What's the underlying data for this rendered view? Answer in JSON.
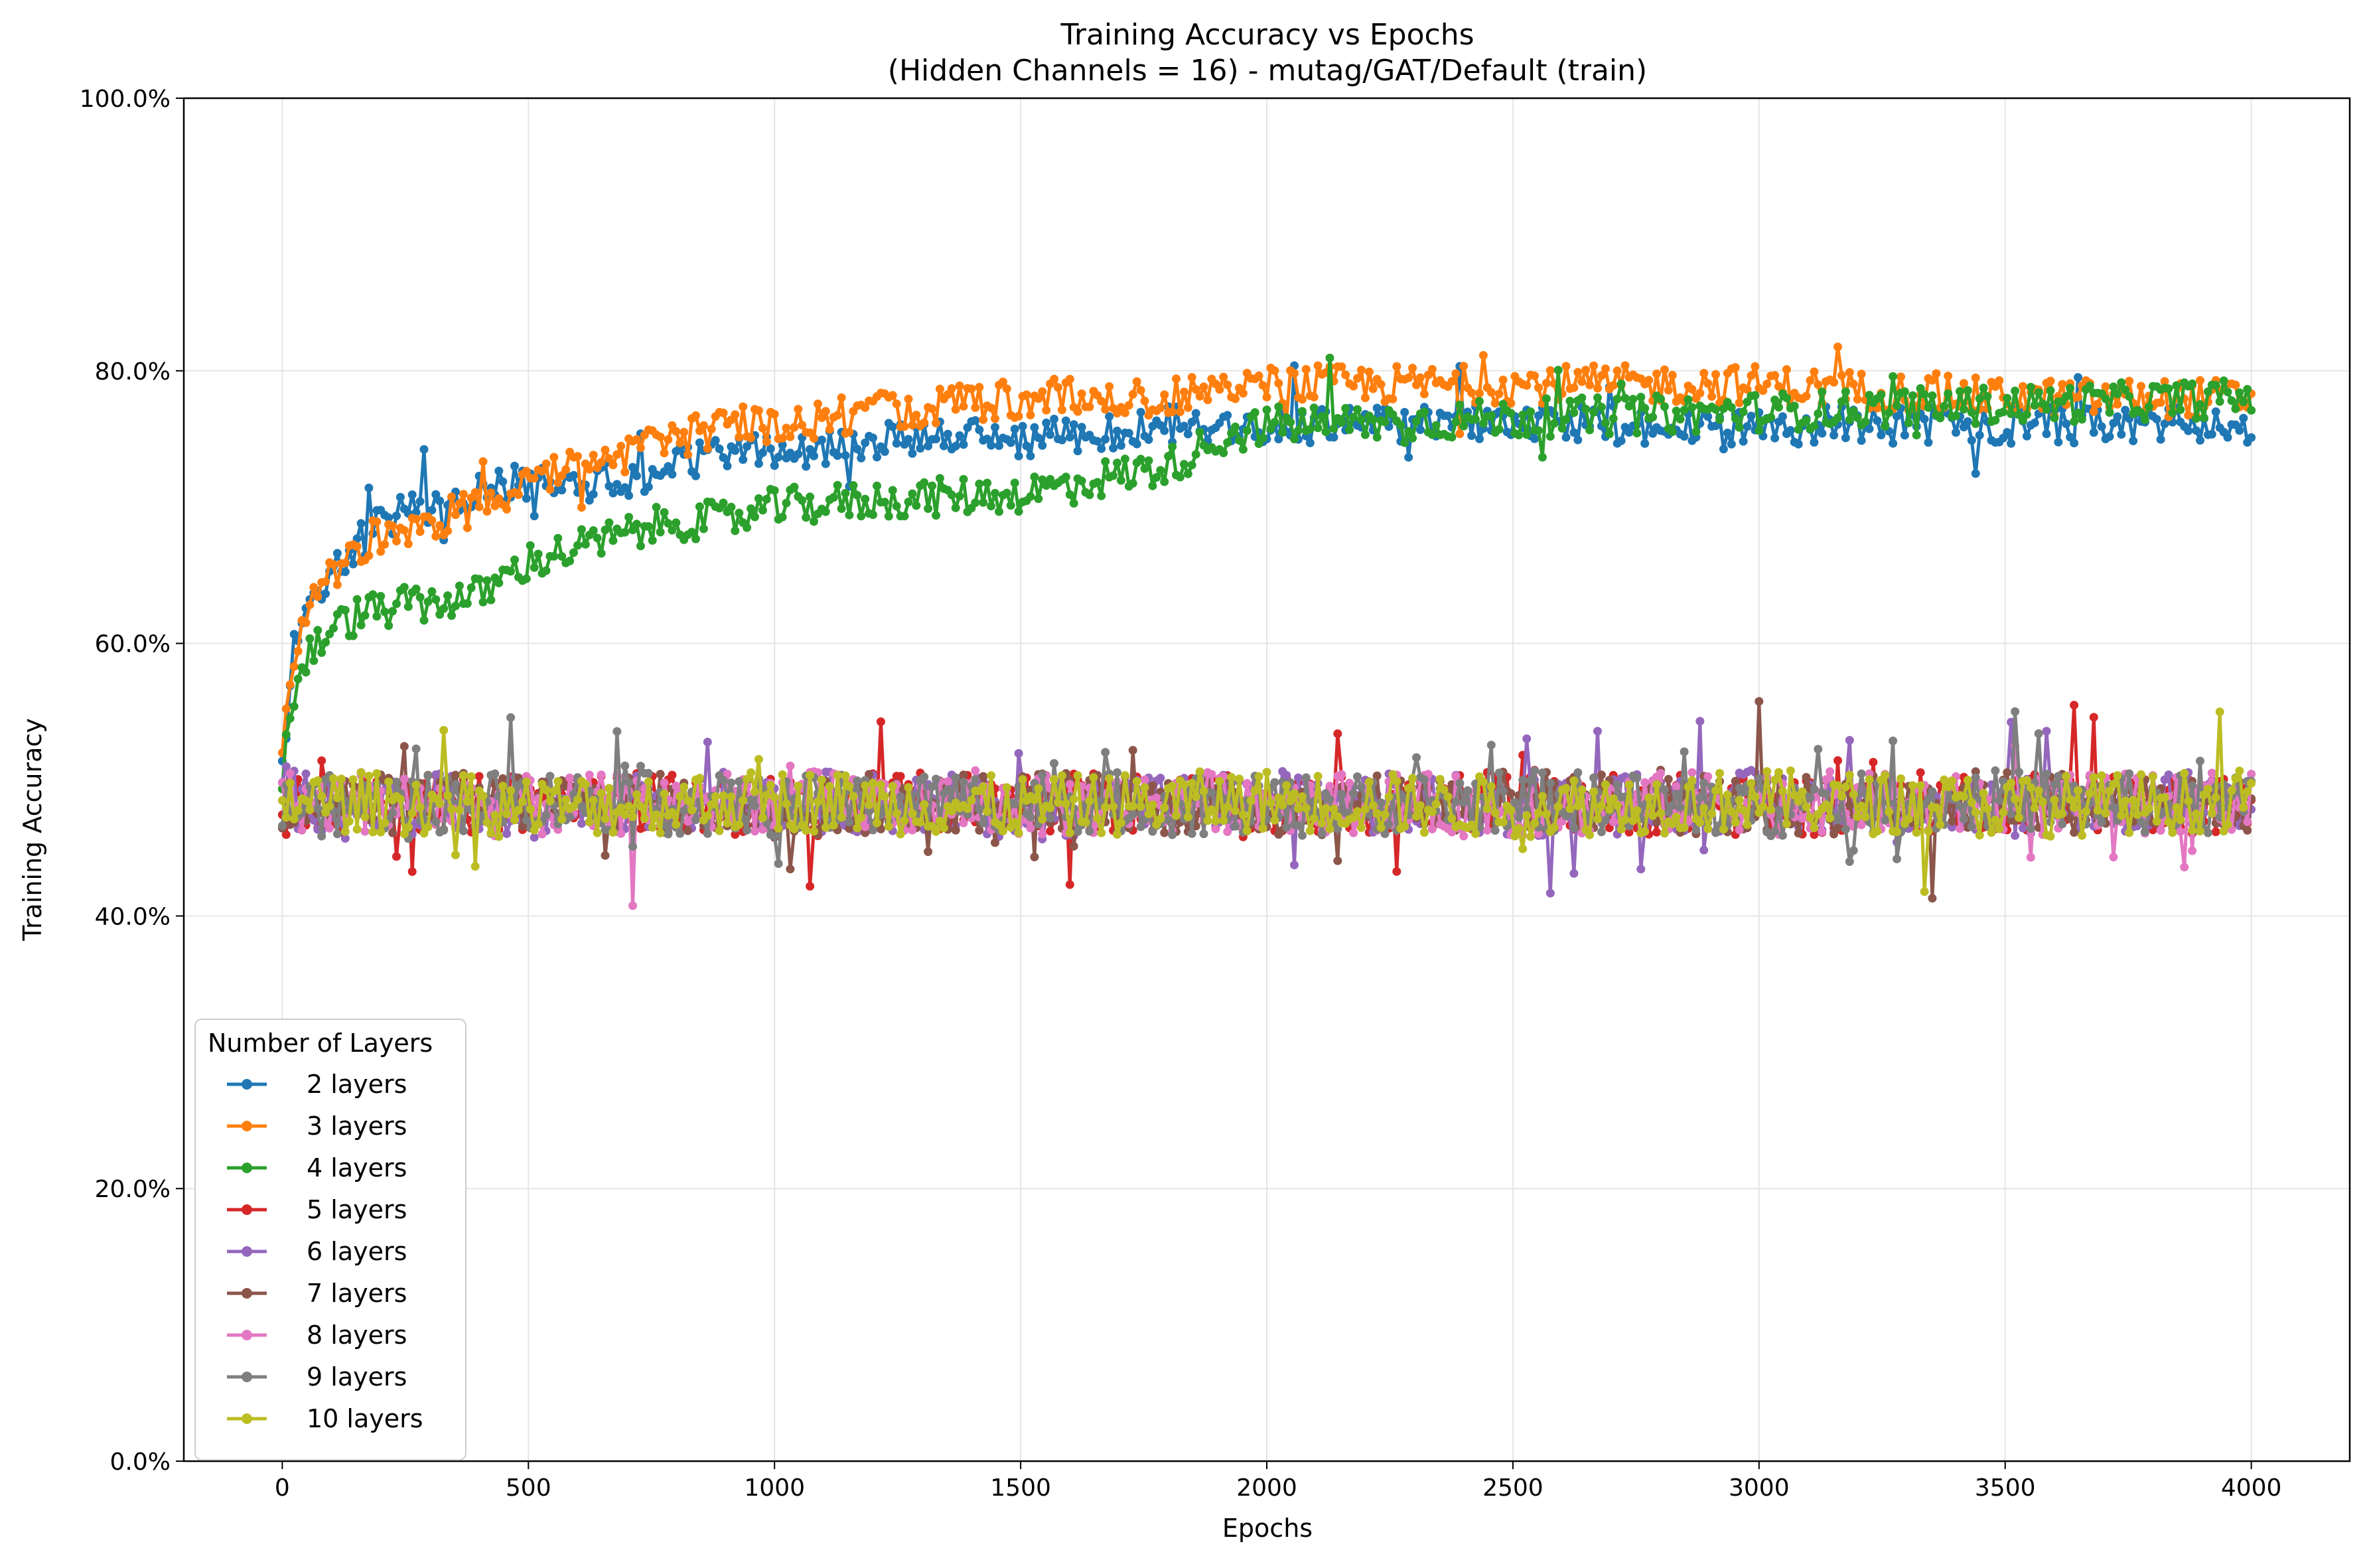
{
  "chart_data": {
    "type": "line",
    "title": "Training Accuracy vs Epochs",
    "subtitle": "(Hidden Channels = 16) - mutag/GAT/Default (train)",
    "xlabel": "Epochs",
    "ylabel": "Training Accuracy",
    "xlim": [
      -200,
      4200
    ],
    "ylim": [
      0,
      100
    ],
    "x_ticks": [
      0,
      500,
      1000,
      1500,
      2000,
      2500,
      3000,
      3500,
      4000
    ],
    "x_tick_labels": [
      "0",
      "500",
      "1000",
      "1500",
      "2000",
      "2500",
      "3000",
      "3500",
      "4000"
    ],
    "y_ticks": [
      0,
      20,
      40,
      60,
      80,
      100
    ],
    "y_tick_labels": [
      "0.0%",
      "20.0%",
      "40.0%",
      "60.0%",
      "80.0%",
      "100.0%"
    ],
    "grid": true,
    "legend_title": "Number of Layers",
    "legend_position": "lower-left",
    "series": [
      {
        "name": "2 layers",
        "color": "#1f77b4",
        "points": [
          [
            0,
            50
          ],
          [
            20,
            60
          ],
          [
            50,
            63
          ],
          [
            100,
            65
          ],
          [
            150,
            67
          ],
          [
            200,
            69
          ],
          [
            300,
            70
          ],
          [
            400,
            71
          ],
          [
            500,
            72
          ],
          [
            600,
            72
          ],
          [
            700,
            72
          ],
          [
            800,
            73
          ],
          [
            900,
            74
          ],
          [
            1000,
            74
          ],
          [
            1200,
            75
          ],
          [
            1500,
            75
          ],
          [
            1800,
            76
          ],
          [
            2000,
            76
          ],
          [
            2500,
            76
          ],
          [
            3000,
            76
          ],
          [
            3500,
            76
          ],
          [
            4000,
            76
          ]
        ]
      },
      {
        "name": "3 layers",
        "color": "#ff7f0e",
        "points": [
          [
            0,
            52
          ],
          [
            20,
            58
          ],
          [
            50,
            63
          ],
          [
            100,
            65
          ],
          [
            150,
            67
          ],
          [
            200,
            68
          ],
          [
            300,
            69
          ],
          [
            400,
            70
          ],
          [
            500,
            72
          ],
          [
            600,
            73
          ],
          [
            700,
            74
          ],
          [
            800,
            75
          ],
          [
            900,
            76
          ],
          [
            1000,
            76
          ],
          [
            1200,
            77
          ],
          [
            1500,
            78
          ],
          [
            1800,
            78
          ],
          [
            2000,
            79
          ],
          [
            2500,
            79
          ],
          [
            3000,
            79
          ],
          [
            3500,
            78
          ],
          [
            4000,
            78
          ]
        ]
      },
      {
        "name": "4 layers",
        "color": "#2ca02c",
        "points": [
          [
            0,
            50
          ],
          [
            20,
            56
          ],
          [
            50,
            59
          ],
          [
            100,
            61
          ],
          [
            150,
            62
          ],
          [
            200,
            62.5
          ],
          [
            300,
            63
          ],
          [
            400,
            63.5
          ],
          [
            500,
            66
          ],
          [
            600,
            67
          ],
          [
            700,
            68
          ],
          [
            800,
            69
          ],
          [
            900,
            69
          ],
          [
            1000,
            70
          ],
          [
            1200,
            70.5
          ],
          [
            1500,
            71
          ],
          [
            1800,
            73
          ],
          [
            1900,
            75
          ],
          [
            2000,
            76
          ],
          [
            2500,
            76.5
          ],
          [
            3000,
            77
          ],
          [
            3500,
            77.5
          ],
          [
            4000,
            78
          ]
        ]
      },
      {
        "name": "5 layers",
        "color": "#d62728",
        "points": [
          [
            0,
            48
          ],
          [
            500,
            48.5
          ],
          [
            1000,
            48
          ],
          [
            1500,
            48.5
          ],
          [
            2000,
            48
          ],
          [
            2500,
            48.5
          ],
          [
            3000,
            48
          ],
          [
            3500,
            48.5
          ],
          [
            4000,
            48
          ]
        ]
      },
      {
        "name": "6 layers",
        "color": "#9467bd",
        "points": [
          [
            0,
            48.5
          ],
          [
            500,
            48
          ],
          [
            1000,
            48.5
          ],
          [
            1500,
            48
          ],
          [
            2000,
            48.5
          ],
          [
            2500,
            48
          ],
          [
            3000,
            48.5
          ],
          [
            3500,
            48
          ],
          [
            4000,
            48.5
          ]
        ]
      },
      {
        "name": "7 layers",
        "color": "#8c564b",
        "points": [
          [
            0,
            48
          ],
          [
            500,
            48.5
          ],
          [
            1000,
            48
          ],
          [
            1500,
            48.5
          ],
          [
            2000,
            48
          ],
          [
            2500,
            48.5
          ],
          [
            3000,
            48
          ],
          [
            3500,
            48.5
          ],
          [
            4000,
            48
          ]
        ]
      },
      {
        "name": "8 layers",
        "color": "#e377c2",
        "points": [
          [
            0,
            48.5
          ],
          [
            500,
            48
          ],
          [
            1000,
            48.5
          ],
          [
            1500,
            48
          ],
          [
            2000,
            48.5
          ],
          [
            2500,
            48
          ],
          [
            3000,
            48.5
          ],
          [
            3500,
            48
          ],
          [
            4000,
            48.5
          ]
        ]
      },
      {
        "name": "9 layers",
        "color": "#7f7f7f",
        "points": [
          [
            0,
            48
          ],
          [
            500,
            48.5
          ],
          [
            1000,
            48
          ],
          [
            1500,
            48.5
          ],
          [
            2000,
            48
          ],
          [
            2500,
            48.5
          ],
          [
            3000,
            48
          ],
          [
            3500,
            48.5
          ],
          [
            4000,
            48
          ]
        ]
      },
      {
        "name": "10 layers",
        "color": "#bcbd22",
        "points": [
          [
            0,
            48.5
          ],
          [
            500,
            48
          ],
          [
            1000,
            48.5
          ],
          [
            1500,
            48
          ],
          [
            2000,
            48.5
          ],
          [
            2500,
            48
          ],
          [
            3000,
            48.5
          ],
          [
            3500,
            48
          ],
          [
            4000,
            48.5
          ]
        ]
      }
    ]
  }
}
